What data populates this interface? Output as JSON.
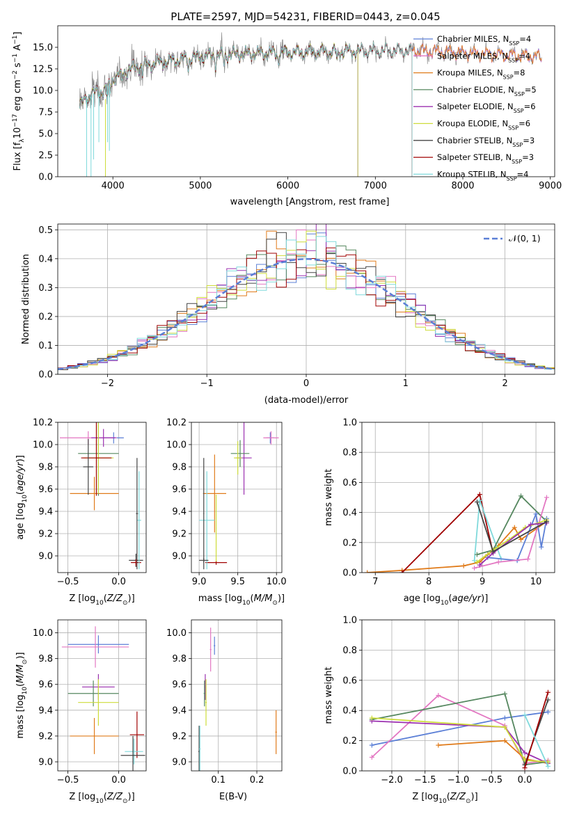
{
  "figure_title": "PLATE=2597, MJD=54231, FIBERID=0443, z=0.045",
  "colors": {
    "Chabrier MILES": "#5b7fd6",
    "Salpeter MILES": "#e377c2",
    "Kroupa MILES": "#e07b1a",
    "Chabrier ELODIE": "#55875f",
    "Salpeter ELODIE": "#9b30b0",
    "Kroupa ELODIE": "#cddc39",
    "Chabrier STELIB": "#444444",
    "Salpeter STELIB": "#a00000",
    "Kroupa STELIB": "#7fd9db",
    "data": "#808080",
    "normal": "#5b7fd6"
  },
  "chart_data": [
    {
      "id": "spectrum",
      "type": "line",
      "title": "PLATE=2597, MJD=54231, FIBERID=0443, z=0.045",
      "xlabel": "wavelength [Angstrom, rest frame]",
      "ylabel": "Flux [f_λ 10^-17 erg cm^-2 s^-1 A^-1]",
      "xlim": [
        3370,
        9050
      ],
      "ylim": [
        0,
        17.5
      ],
      "xticks": [
        4000,
        5000,
        6000,
        7000,
        8000,
        9000
      ],
      "yticks": [
        0.0,
        2.5,
        5.0,
        7.5,
        10.0,
        12.5,
        15.0
      ],
      "grid": false,
      "legend_position": "top-right",
      "legend": [
        {
          "label": "Chabrier MILES, N",
          "sub": "SSP",
          "value": "=4"
        },
        {
          "label": "Salpeter MILES, N",
          "sub": "SSP",
          "value": "=4"
        },
        {
          "label": "Kroupa MILES, N",
          "sub": "SSP",
          "value": "=8"
        },
        {
          "label": "Chabrier ELODIE, N",
          "sub": "SSP",
          "value": "=5"
        },
        {
          "label": "Salpeter ELODIE, N",
          "sub": "SSP",
          "value": "=6"
        },
        {
          "label": "Kroupa ELODIE, N",
          "sub": "SSP",
          "value": "=6"
        },
        {
          "label": "Chabrier STELIB, N",
          "sub": "SSP",
          "value": "=3"
        },
        {
          "label": "Salpeter STELIB, N",
          "sub": "SSP",
          "value": "=3"
        },
        {
          "label": "Kroupa STELIB, N",
          "sub": "SSP",
          "value": "=4"
        }
      ],
      "continuum": [
        [
          3620,
          8.2
        ],
        [
          3700,
          9.2
        ],
        [
          3800,
          9.8
        ],
        [
          3900,
          10.0
        ],
        [
          4000,
          11.3
        ],
        [
          4100,
          12.0
        ],
        [
          4200,
          12.5
        ],
        [
          4300,
          12.8
        ],
        [
          4500,
          13.2
        ],
        [
          4800,
          13.6
        ],
        [
          5000,
          13.9
        ],
        [
          5300,
          14.1
        ],
        [
          5600,
          14.3
        ],
        [
          6000,
          14.4
        ],
        [
          6500,
          14.5
        ],
        [
          7000,
          14.6
        ],
        [
          7500,
          14.6
        ],
        [
          8000,
          14.4
        ],
        [
          8500,
          14.1
        ],
        [
          8900,
          13.9
        ]
      ],
      "model_end_x": {
        "ELODIE": 6800,
        "STELIB": 7420,
        "MILES": 8900
      }
    },
    {
      "id": "residuals",
      "type": "histogram",
      "xlabel": "(data-model)/error",
      "ylabel": "Normed distribution",
      "xlim": [
        -2.5,
        2.5
      ],
      "ylim": [
        0,
        0.52
      ],
      "xticks": [
        -2,
        -1,
        0,
        1,
        2
      ],
      "yticks": [
        0.0,
        0.1,
        0.2,
        0.3,
        0.4,
        0.5
      ],
      "grid": true,
      "legend_position": "top-right",
      "legend_label": "𝒩(0, 1)",
      "bin_width": 0.1
    },
    {
      "id": "age_vs_Z",
      "type": "errorbar",
      "xlabel": "Z [log10(Z/Z☉)]",
      "ylabel": "age [log10(age/yr)]",
      "xlim": [
        -0.6,
        0.27
      ],
      "ylim": [
        8.85,
        10.2
      ],
      "xticks": [
        -0.5,
        0.0
      ],
      "yticks": [
        9.0,
        9.2,
        9.4,
        9.6,
        9.8,
        10.0,
        10.2
      ],
      "grid": true,
      "points": [
        {
          "model": "Chabrier MILES",
          "x": -0.05,
          "xerr": 0.1,
          "y": 10.06,
          "yerr": 0.05
        },
        {
          "model": "Salpeter MILES",
          "x": -0.3,
          "xerr": 0.28,
          "y": 10.06,
          "yerr": 0.06
        },
        {
          "model": "Salpeter ELODIE",
          "x": -0.15,
          "xerr": 0.12,
          "y": 10.06,
          "yerr": 0.08
        },
        {
          "model": "Kroupa MILES",
          "x": -0.24,
          "xerr": 0.24,
          "y": 9.56,
          "yerr": 0.15
        },
        {
          "model": "Chabrier ELODIE",
          "x": -0.2,
          "xerr": 0.2,
          "y": 9.92,
          "yerr": 0.38
        },
        {
          "model": "Kroupa ELODIE",
          "x": -0.2,
          "xerr": 0.15,
          "y": 9.88,
          "yerr": 0.32
        },
        {
          "model": "Salpeter STELIB",
          "x": -0.22,
          "xerr": 0.15,
          "y": 9.88,
          "yerr": 0.34
        },
        {
          "model": "Chabrier STELIB",
          "x": -0.3,
          "xerr": 0.05,
          "y": 9.8,
          "yerr": 0.25
        },
        {
          "model": "Chabrier STELIB",
          "x": 0.17,
          "xerr": 0.07,
          "y": 8.96,
          "yerr": 0.06
        },
        {
          "model": "Salpeter STELIB",
          "x": 0.17,
          "xerr": 0.05,
          "y": 8.94,
          "yerr": 0.03
        },
        {
          "model": "Kroupa STELIB",
          "x": 0.2,
          "xerr": 0.02,
          "y": 9.32,
          "yerr": 0.44
        },
        {
          "model": "Chabrier STELIB",
          "x": 0.18,
          "xerr": 0.01,
          "y": 9.38,
          "yerr": 0.5
        }
      ]
    },
    {
      "id": "age_vs_mass",
      "type": "errorbar",
      "xlabel": "mass [log10(M/M☉)]",
      "ylabel": "",
      "xlim": [
        8.9,
        10.07
      ],
      "ylim": [
        8.85,
        10.2
      ],
      "xticks": [
        9.0,
        9.5,
        10.0
      ],
      "yticks": [
        9.0,
        9.2,
        9.4,
        9.6,
        9.8,
        10.0,
        10.2
      ],
      "grid": true,
      "points": [
        {
          "model": "Chabrier MILES",
          "x": 9.92,
          "xerr": 0.05,
          "y": 10.06,
          "yerr": 0.05
        },
        {
          "model": "Salpeter MILES",
          "x": 9.93,
          "xerr": 0.1,
          "y": 10.06,
          "yerr": 0.06
        },
        {
          "model": "Salpeter ELODIE",
          "x": 9.58,
          "xerr": 0.1,
          "y": 9.88,
          "yerr": 0.33
        },
        {
          "model": "Chabrier ELODIE",
          "x": 9.53,
          "xerr": 0.12,
          "y": 9.92,
          "yerr": 0.12
        },
        {
          "model": "Kroupa ELODIE",
          "x": 9.5,
          "xerr": 0.05,
          "y": 9.88,
          "yerr": 0.15
        },
        {
          "model": "Kroupa MILES",
          "x": 9.2,
          "xerr": 0.15,
          "y": 9.56,
          "yerr": 0.35
        },
        {
          "model": "Salpeter STELIB",
          "x": 9.22,
          "xerr": 0.14,
          "y": 8.94,
          "yerr": 0.02
        },
        {
          "model": "Kroupa STELIB",
          "x": 9.1,
          "xerr": 0.1,
          "y": 9.32,
          "yerr": 0.44
        },
        {
          "model": "Chabrier STELIB",
          "x": 9.06,
          "xerr": 0.06,
          "y": 8.96,
          "yerr": 0.02
        },
        {
          "model": "Chabrier STELIB",
          "x": 9.06,
          "xerr": 0.005,
          "y": 9.38,
          "yerr": 0.5
        },
        {
          "model": "Kroupa ELODIE",
          "x": 9.22,
          "xerr": 0.005,
          "y": 9.25,
          "yerr": 0.3
        }
      ]
    },
    {
      "id": "weight_vs_age",
      "type": "line",
      "xlabel": "age [log10(age/yr)]",
      "ylabel": "mass weight",
      "xlim": [
        6.75,
        10.35
      ],
      "ylim": [
        0,
        1.0
      ],
      "xticks": [
        7,
        8,
        9,
        10
      ],
      "yticks": [
        0.0,
        0.2,
        0.4,
        0.6,
        0.8,
        1.0
      ],
      "grid": true,
      "series": [
        {
          "model": "Kroupa MILES",
          "x": [
            6.85,
            7.5,
            8.65,
            8.95,
            9.1,
            9.3,
            9.6,
            9.72,
            10.2
          ],
          "y": [
            0.0,
            0.015,
            0.045,
            0.07,
            0.12,
            0.18,
            0.3,
            0.22,
            0.34
          ]
        },
        {
          "model": "Salpeter STELIB",
          "x": [
            7.5,
            8.95,
            9.2
          ],
          "y": [
            0.0,
            0.52,
            0.13
          ]
        },
        {
          "model": "Kroupa STELIB",
          "x": [
            8.85,
            8.95,
            9.35
          ],
          "y": [
            0.08,
            0.48,
            0.09
          ]
        },
        {
          "model": "Chabrier ELODIE",
          "x": [
            8.9,
            9.2,
            9.72,
            10.2
          ],
          "y": [
            0.12,
            0.15,
            0.51,
            0.34
          ]
        },
        {
          "model": "Chabrier MILES",
          "x": [
            9.1,
            9.65,
            10.0,
            10.1,
            10.2
          ],
          "y": [
            0.1,
            0.08,
            0.39,
            0.17,
            0.36
          ]
        },
        {
          "model": "Salpeter MILES",
          "x": [
            8.85,
            9.3,
            9.85,
            10.2
          ],
          "y": [
            0.03,
            0.07,
            0.09,
            0.5
          ]
        },
        {
          "model": "Kroupa ELODIE",
          "x": [
            8.9,
            9.2,
            9.5,
            9.8,
            10.2
          ],
          "y": [
            0.07,
            0.15,
            0.22,
            0.3,
            0.35
          ]
        },
        {
          "model": "Salpeter ELODIE",
          "x": [
            8.95,
            9.2,
            9.9,
            10.2
          ],
          "y": [
            0.05,
            0.13,
            0.32,
            0.33
          ]
        },
        {
          "model": "Chabrier STELIB",
          "x": [
            8.9,
            9.2,
            10.2
          ],
          "y": [
            0.47,
            0.14,
            0.34
          ]
        }
      ]
    },
    {
      "id": "mass_vs_Z",
      "type": "errorbar",
      "xlabel": "Z [log10(Z/Z☉)]",
      "ylabel": "mass [log10(M/M☉)]",
      "xlim": [
        -0.6,
        0.27
      ],
      "ylim": [
        8.93,
        10.1
      ],
      "xticks": [
        -0.5,
        0.0
      ],
      "yticks": [
        9.0,
        9.2,
        9.4,
        9.6,
        9.8,
        10.0
      ],
      "grid": true,
      "points": [
        {
          "model": "Chabrier MILES",
          "x": -0.2,
          "xerr": 0.3,
          "y": 9.91,
          "yerr": 0.07
        },
        {
          "model": "Salpeter MILES",
          "x": -0.23,
          "xerr": 0.33,
          "y": 9.89,
          "yerr": 0.16
        },
        {
          "model": "Salpeter ELODIE",
          "x": -0.2,
          "xerr": 0.16,
          "y": 9.58,
          "yerr": 0.1
        },
        {
          "model": "Chabrier ELODIE",
          "x": -0.25,
          "xerr": 0.25,
          "y": 9.53,
          "yerr": 0.1
        },
        {
          "model": "Kroupa ELODIE",
          "x": -0.2,
          "xerr": 0.2,
          "y": 9.46,
          "yerr": 0.18
        },
        {
          "model": "Kroupa MILES",
          "x": -0.24,
          "xerr": 0.24,
          "y": 9.2,
          "yerr": 0.14
        },
        {
          "model": "Salpeter STELIB",
          "x": 0.18,
          "xerr": 0.07,
          "y": 9.21,
          "yerr": 0.18
        },
        {
          "model": "Kroupa STELIB",
          "x": 0.15,
          "xerr": 0.09,
          "y": 9.08,
          "yerr": 0.1
        },
        {
          "model": "Chabrier STELIB",
          "x": 0.14,
          "xerr": 0.12,
          "y": 9.05,
          "yerr": 0.15
        }
      ]
    },
    {
      "id": "mass_vs_EBV",
      "type": "errorbar",
      "xlabel": "E(B-V)",
      "ylabel": "",
      "xlim": [
        0.03,
        0.265
      ],
      "ylim": [
        8.93,
        10.1
      ],
      "xticks": [
        0.1,
        0.2
      ],
      "yticks": [
        9.0,
        9.2,
        9.4,
        9.6,
        9.8,
        10.0
      ],
      "grid": true,
      "points": [
        {
          "model": "Salpeter MILES",
          "x": 0.08,
          "xerr": 0.002,
          "y": 9.87,
          "yerr": 0.17
        },
        {
          "model": "Chabrier MILES",
          "x": 0.09,
          "xerr": 0.002,
          "y": 9.9,
          "yerr": 0.07
        },
        {
          "model": "Salpeter ELODIE",
          "x": 0.066,
          "xerr": 0.002,
          "y": 9.58,
          "yerr": 0.1
        },
        {
          "model": "Kroupa ELODIE",
          "x": 0.068,
          "xerr": 0.002,
          "y": 9.46,
          "yerr": 0.18
        },
        {
          "model": "Chabrier ELODIE",
          "x": 0.064,
          "xerr": 0.002,
          "y": 9.53,
          "yerr": 0.1
        },
        {
          "model": "Chabrier STELIB",
          "x": 0.05,
          "xerr": 0.002,
          "y": 9.08,
          "yerr": 0.2
        },
        {
          "model": "Kroupa STELIB",
          "x": 0.052,
          "xerr": 0.002,
          "y": 9.1,
          "yerr": 0.18
        },
        {
          "model": "Kroupa MILES",
          "x": 0.25,
          "xerr": 0.002,
          "y": 9.23,
          "yerr": 0.17
        }
      ]
    },
    {
      "id": "weight_vs_Z",
      "type": "line",
      "xlabel": "Z [log10(Z/Z☉)]",
      "ylabel": "mass weight",
      "xlim": [
        -2.45,
        0.45
      ],
      "ylim": [
        0,
        1.0
      ],
      "xticks": [
        -2.0,
        -1.5,
        -1.0,
        -0.5,
        0.0
      ],
      "yticks": [
        0.0,
        0.2,
        0.4,
        0.6,
        0.8,
        1.0
      ],
      "grid": true,
      "series": [
        {
          "model": "Chabrier MILES",
          "x": [
            -2.3,
            -0.3,
            0.35
          ],
          "y": [
            0.17,
            0.35,
            0.39
          ]
        },
        {
          "model": "Salpeter MILES",
          "x": [
            -2.3,
            -1.3,
            -0.3,
            0.0,
            0.35
          ],
          "y": [
            0.09,
            0.5,
            0.3,
            0.05,
            0.07
          ]
        },
        {
          "model": "Kroupa MILES",
          "x": [
            -1.3,
            -0.3,
            0.0,
            0.35
          ],
          "y": [
            0.17,
            0.2,
            0.08,
            0.05
          ]
        },
        {
          "model": "Chabrier ELODIE",
          "x": [
            -2.3,
            -0.3,
            0.0,
            0.35
          ],
          "y": [
            0.34,
            0.51,
            0.04,
            0.06
          ]
        },
        {
          "model": "Salpeter ELODIE",
          "x": [
            -2.3,
            -0.3,
            0.0,
            0.35
          ],
          "y": [
            0.33,
            0.29,
            0.12,
            0.05
          ]
        },
        {
          "model": "Kroupa ELODIE",
          "x": [
            -2.3,
            -0.3,
            0.0,
            0.35
          ],
          "y": [
            0.35,
            0.29,
            0.07,
            0.06
          ]
        },
        {
          "model": "Chabrier STELIB",
          "x": [
            0.0,
            0.35
          ],
          "y": [
            0.04,
            0.47
          ]
        },
        {
          "model": "Salpeter STELIB",
          "x": [
            0.0,
            0.35
          ],
          "y": [
            0.02,
            0.52
          ]
        },
        {
          "model": "Kroupa STELIB",
          "x": [
            0.0,
            0.35
          ],
          "y": [
            0.37,
            0.03
          ]
        }
      ]
    }
  ]
}
